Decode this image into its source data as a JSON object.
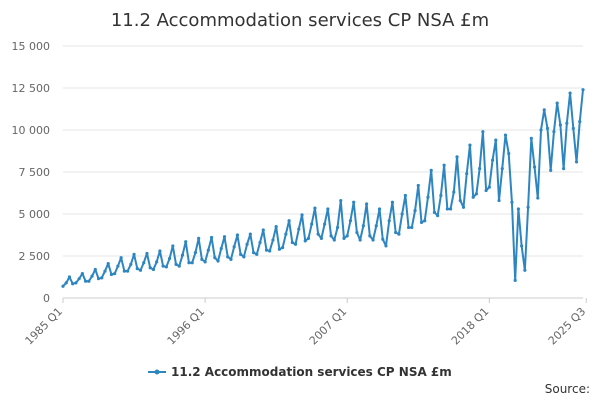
{
  "chart_data": {
    "type": "line",
    "title": "11.2 Accommodation services CP NSA £m",
    "xlabel": "",
    "ylabel": "",
    "ylim": [
      0,
      15000
    ],
    "yticks": [
      0,
      2500,
      5000,
      7500,
      10000,
      12500,
      15000
    ],
    "ytick_labels": [
      "0",
      "2 500",
      "5 000",
      "7 500",
      "10 000",
      "12 500",
      "15 000"
    ],
    "xtick_labels": [
      {
        "index": 0,
        "label": "1985 Q1"
      },
      {
        "index": 44,
        "label": "1996 Q1"
      },
      {
        "index": 88,
        "label": "2007 Q1"
      },
      {
        "index": 132,
        "label": "2018 Q1"
      },
      {
        "index": 162,
        "label": "2025 Q3"
      }
    ],
    "grid": true,
    "legend_position": "bottom",
    "series": [
      {
        "name": "11.2 Accommodation services CP NSA £m",
        "color": "#2E86C1",
        "values": [
          700,
          900,
          1250,
          850,
          900,
          1150,
          1450,
          1000,
          1000,
          1300,
          1700,
          1150,
          1200,
          1600,
          2050,
          1400,
          1450,
          1900,
          2400,
          1600,
          1600,
          2000,
          2600,
          1750,
          1650,
          2100,
          2650,
          1800,
          1700,
          2150,
          2800,
          1900,
          1850,
          2350,
          3100,
          2000,
          1900,
          2550,
          3350,
          2100,
          2100,
          2700,
          3550,
          2300,
          2150,
          2850,
          3600,
          2400,
          2200,
          2950,
          3650,
          2450,
          2300,
          3050,
          3750,
          2600,
          2450,
          3200,
          3800,
          2700,
          2600,
          3300,
          4050,
          2850,
          2800,
          3450,
          4250,
          2900,
          3000,
          3800,
          4600,
          3300,
          3200,
          4100,
          4950,
          3400,
          3550,
          4400,
          5350,
          3800,
          3550,
          4400,
          5300,
          3700,
          3450,
          4200,
          5800,
          3550,
          3700,
          4600,
          5700,
          3900,
          3450,
          4300,
          5600,
          3700,
          3450,
          4300,
          5300,
          3500,
          3100,
          4600,
          5700,
          3900,
          3800,
          5000,
          6100,
          4200,
          4200,
          5200,
          6700,
          4500,
          4600,
          6000,
          7600,
          5100,
          4900,
          6100,
          7900,
          5300,
          5300,
          6300,
          8400,
          5800,
          5400,
          7400,
          9100,
          6000,
          6200,
          7700,
          9900,
          6400,
          6600,
          8200,
          9400,
          5800,
          7700,
          9700,
          8600,
          5700,
          1050,
          5300,
          3100,
          1650,
          5400,
          9500,
          7800,
          5950,
          10000,
          11200,
          10100,
          7600,
          9900,
          11600,
          10300,
          7700,
          10400,
          12200,
          10100,
          8100,
          10500,
          12400
        ]
      }
    ]
  },
  "legend": {
    "label": "11.2 Accommodation services CP NSA £m"
  },
  "footer": {
    "source": "Source:"
  }
}
